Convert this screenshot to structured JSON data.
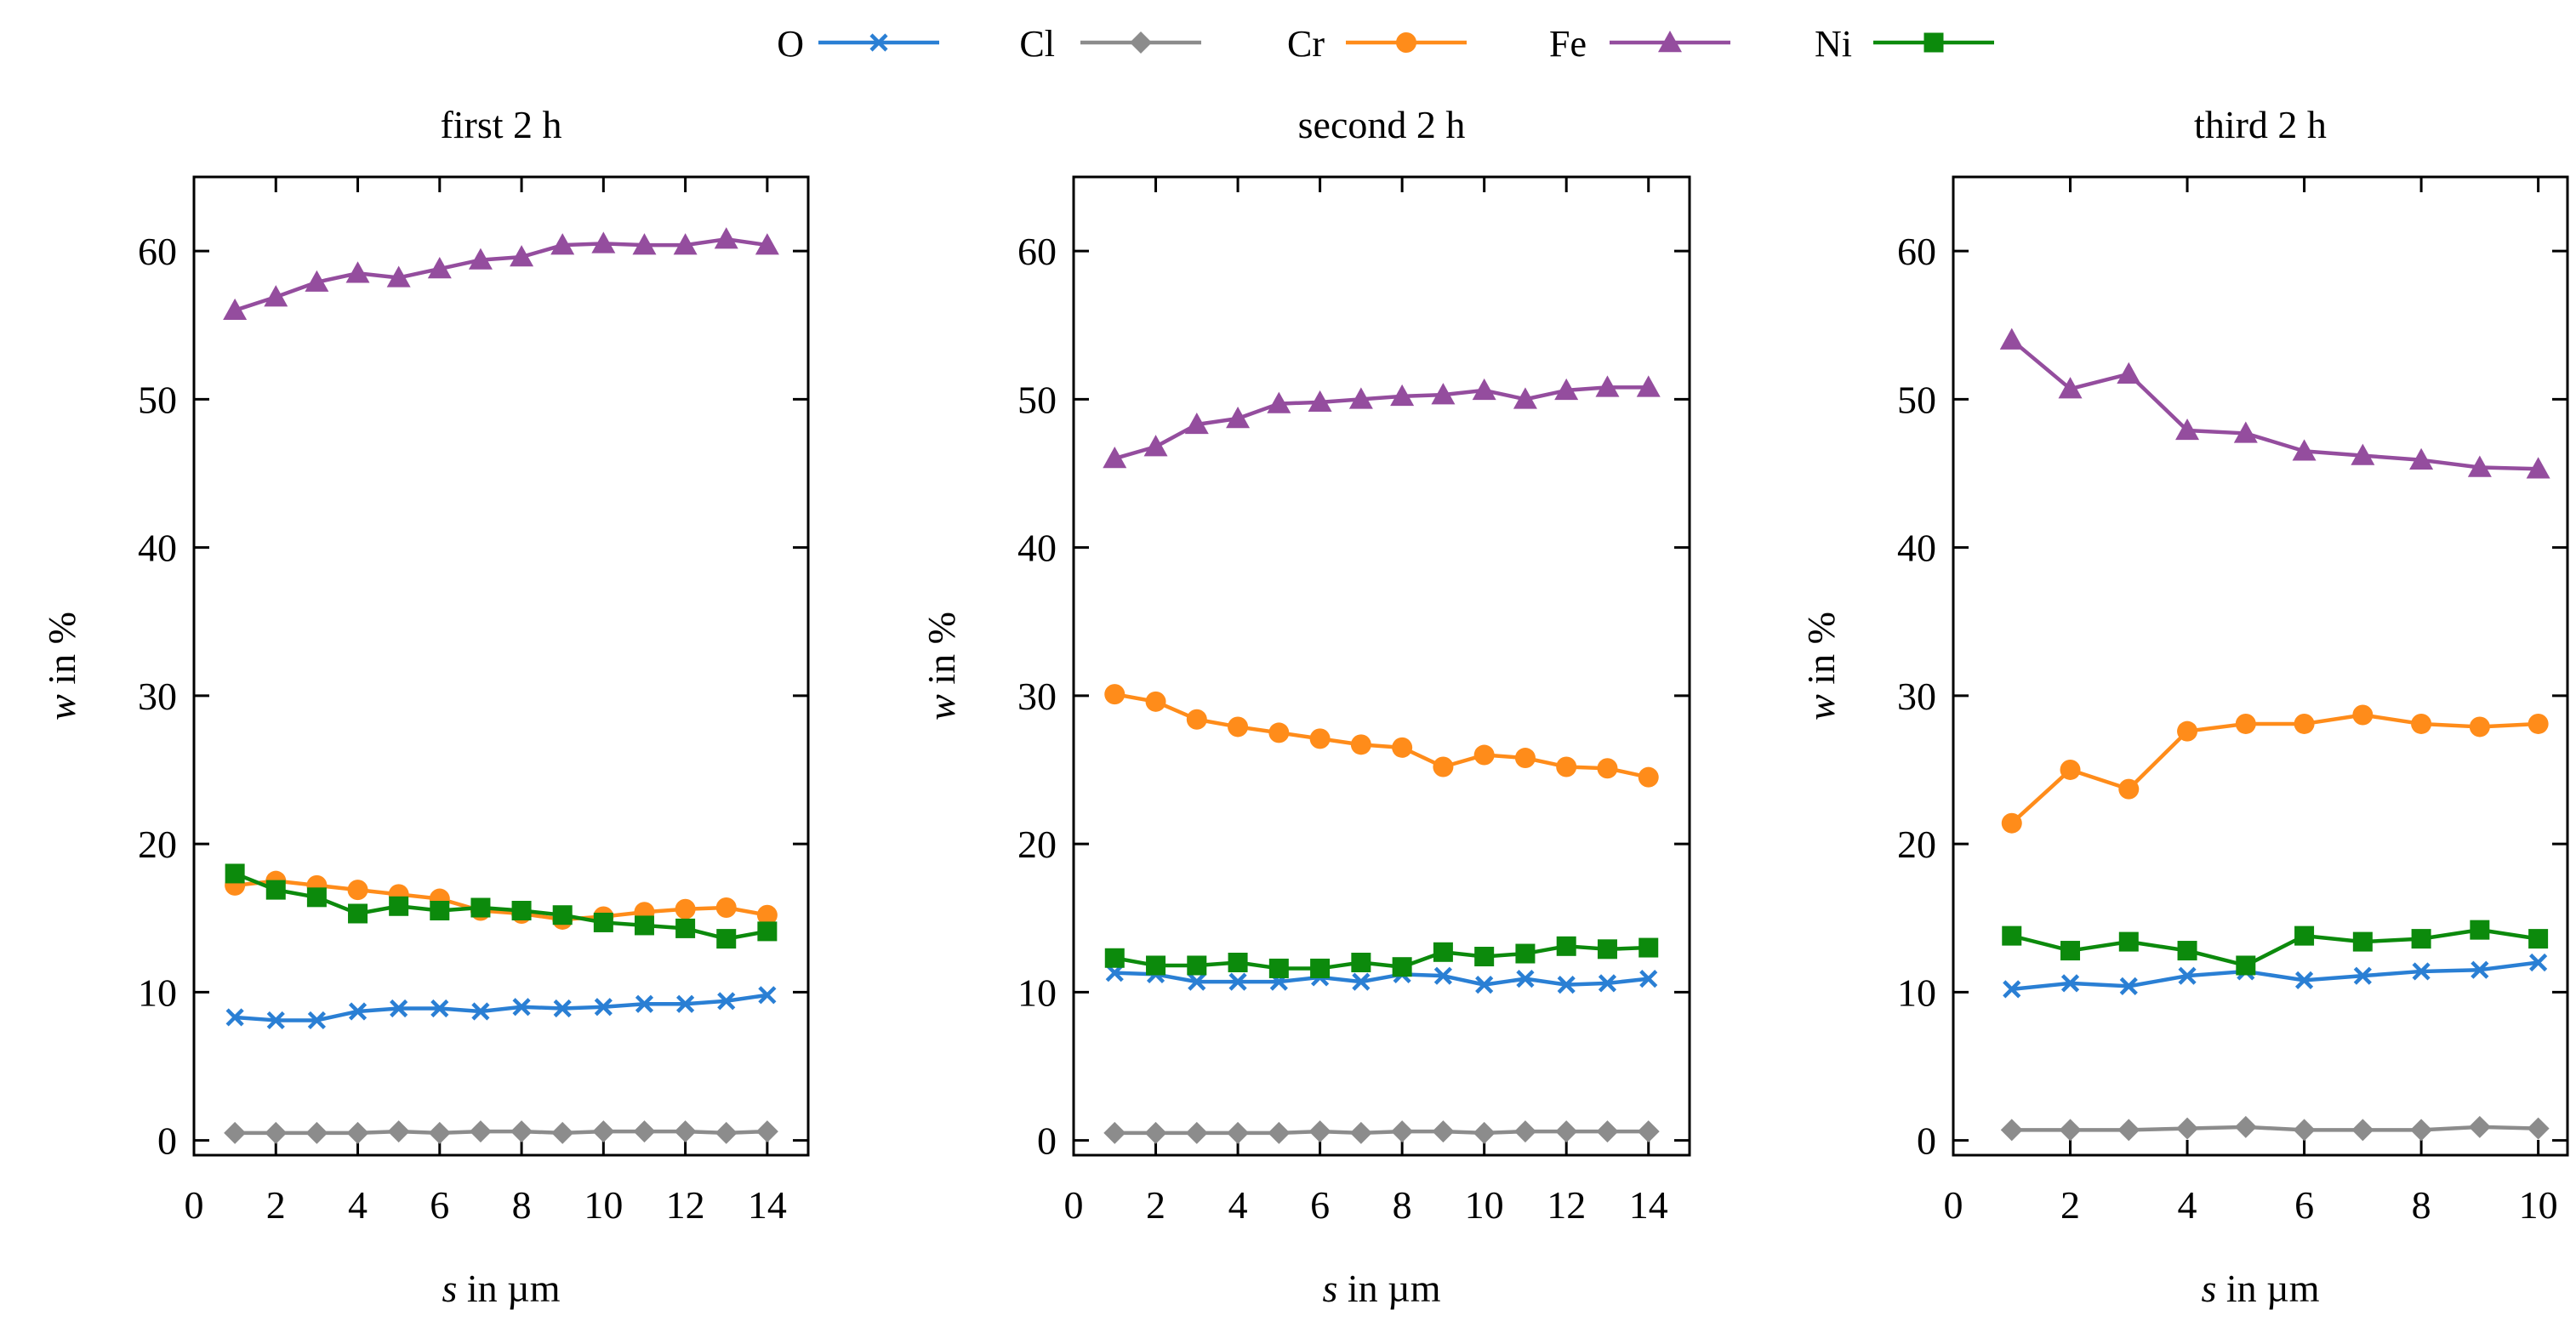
{
  "legend": {
    "position": "top-center",
    "entries": [
      {
        "name": "O",
        "color": "#2a7fd4",
        "marker": "cross"
      },
      {
        "name": "Cl",
        "color": "#8c8c8c",
        "marker": "diamond"
      },
      {
        "name": "Cr",
        "color": "#ff8c1a",
        "marker": "circle"
      },
      {
        "name": "Fe",
        "color": "#944d9e",
        "marker": "triangle"
      },
      {
        "name": "Ni",
        "color": "#0c8a0c",
        "marker": "square"
      }
    ]
  },
  "chart_data": [
    {
      "type": "line",
      "title": "first 2 h",
      "xlabel_italic": "s",
      "xlabel_rest": " in µm",
      "ylabel_italic": "w",
      "ylabel_rest": " in %",
      "xlim": [
        0,
        15
      ],
      "ylim": [
        -1,
        65
      ],
      "xticks": [
        0,
        2,
        4,
        6,
        8,
        10,
        12,
        14
      ],
      "yticks": [
        0,
        10,
        20,
        30,
        40,
        50,
        60
      ],
      "x": [
        1,
        2,
        3,
        4,
        5,
        6,
        7,
        8,
        9,
        10,
        11,
        12,
        13,
        14
      ],
      "series": [
        {
          "name": "O",
          "values": [
            8.3,
            8.1,
            8.1,
            8.7,
            8.9,
            8.9,
            8.7,
            9.0,
            8.9,
            9.0,
            9.2,
            9.2,
            9.4,
            9.8
          ]
        },
        {
          "name": "Cl",
          "values": [
            0.5,
            0.5,
            0.5,
            0.5,
            0.6,
            0.5,
            0.6,
            0.6,
            0.5,
            0.6,
            0.6,
            0.6,
            0.5,
            0.6
          ]
        },
        {
          "name": "Cr",
          "values": [
            17.2,
            17.5,
            17.2,
            16.9,
            16.6,
            16.3,
            15.5,
            15.3,
            14.9,
            15.1,
            15.4,
            15.6,
            15.7,
            15.2
          ]
        },
        {
          "name": "Fe",
          "values": [
            56.0,
            56.9,
            57.9,
            58.5,
            58.2,
            58.8,
            59.4,
            59.6,
            60.4,
            60.5,
            60.4,
            60.4,
            60.8,
            60.4
          ]
        },
        {
          "name": "Ni",
          "values": [
            18.0,
            16.9,
            16.4,
            15.3,
            15.8,
            15.5,
            15.7,
            15.5,
            15.2,
            14.7,
            14.5,
            14.3,
            13.6,
            14.1
          ]
        }
      ]
    },
    {
      "type": "line",
      "title": "second 2 h",
      "xlabel_italic": "s",
      "xlabel_rest": " in µm",
      "ylabel_italic": "w",
      "ylabel_rest": " in %",
      "xlim": [
        0,
        15
      ],
      "ylim": [
        -1,
        65
      ],
      "xticks": [
        0,
        2,
        4,
        6,
        8,
        10,
        12,
        14
      ],
      "yticks": [
        0,
        10,
        20,
        30,
        40,
        50,
        60
      ],
      "x": [
        1,
        2,
        3,
        4,
        5,
        6,
        7,
        8,
        9,
        10,
        11,
        12,
        13,
        14
      ],
      "series": [
        {
          "name": "O",
          "values": [
            11.3,
            11.2,
            10.7,
            10.7,
            10.7,
            11.0,
            10.7,
            11.2,
            11.1,
            10.5,
            10.9,
            10.5,
            10.6,
            10.9
          ]
        },
        {
          "name": "Cl",
          "values": [
            0.5,
            0.5,
            0.5,
            0.5,
            0.5,
            0.6,
            0.5,
            0.6,
            0.6,
            0.5,
            0.6,
            0.6,
            0.6,
            0.6
          ]
        },
        {
          "name": "Cr",
          "values": [
            30.1,
            29.6,
            28.4,
            27.9,
            27.5,
            27.1,
            26.7,
            26.5,
            25.2,
            26.0,
            25.8,
            25.2,
            25.1,
            24.5
          ]
        },
        {
          "name": "Fe",
          "values": [
            46.0,
            46.8,
            48.3,
            48.7,
            49.7,
            49.8,
            50.0,
            50.2,
            50.3,
            50.6,
            50.0,
            50.6,
            50.8,
            50.8
          ]
        },
        {
          "name": "Ni",
          "values": [
            12.3,
            11.8,
            11.8,
            12.0,
            11.6,
            11.6,
            12.0,
            11.7,
            12.7,
            12.4,
            12.6,
            13.1,
            12.9,
            13.0
          ]
        }
      ]
    },
    {
      "type": "line",
      "title": "third 2 h",
      "xlabel_italic": "s",
      "xlabel_rest": " in µm",
      "ylabel_italic": "w",
      "ylabel_rest": " in %",
      "xlim": [
        0,
        10.5
      ],
      "ylim": [
        -1,
        65
      ],
      "xticks": [
        0,
        2,
        4,
        6,
        8,
        10
      ],
      "yticks": [
        0,
        10,
        20,
        30,
        40,
        50,
        60
      ],
      "x": [
        1,
        2,
        3,
        4,
        5,
        6,
        7,
        8,
        9,
        10
      ],
      "series": [
        {
          "name": "O",
          "values": [
            10.2,
            10.6,
            10.4,
            11.1,
            11.4,
            10.8,
            11.1,
            11.4,
            11.5,
            12.0
          ]
        },
        {
          "name": "Cl",
          "values": [
            0.7,
            0.7,
            0.7,
            0.8,
            0.9,
            0.7,
            0.7,
            0.7,
            0.9,
            0.8
          ]
        },
        {
          "name": "Cr",
          "values": [
            21.4,
            25.0,
            23.7,
            27.6,
            28.1,
            28.1,
            28.7,
            28.1,
            27.9,
            28.1
          ]
        },
        {
          "name": "Fe",
          "values": [
            54.0,
            50.7,
            51.7,
            47.9,
            47.7,
            46.5,
            46.2,
            45.9,
            45.4,
            45.3
          ]
        },
        {
          "name": "Ni",
          "values": [
            13.8,
            12.8,
            13.4,
            12.8,
            11.8,
            13.8,
            13.4,
            13.6,
            14.2,
            13.6
          ]
        }
      ]
    }
  ]
}
